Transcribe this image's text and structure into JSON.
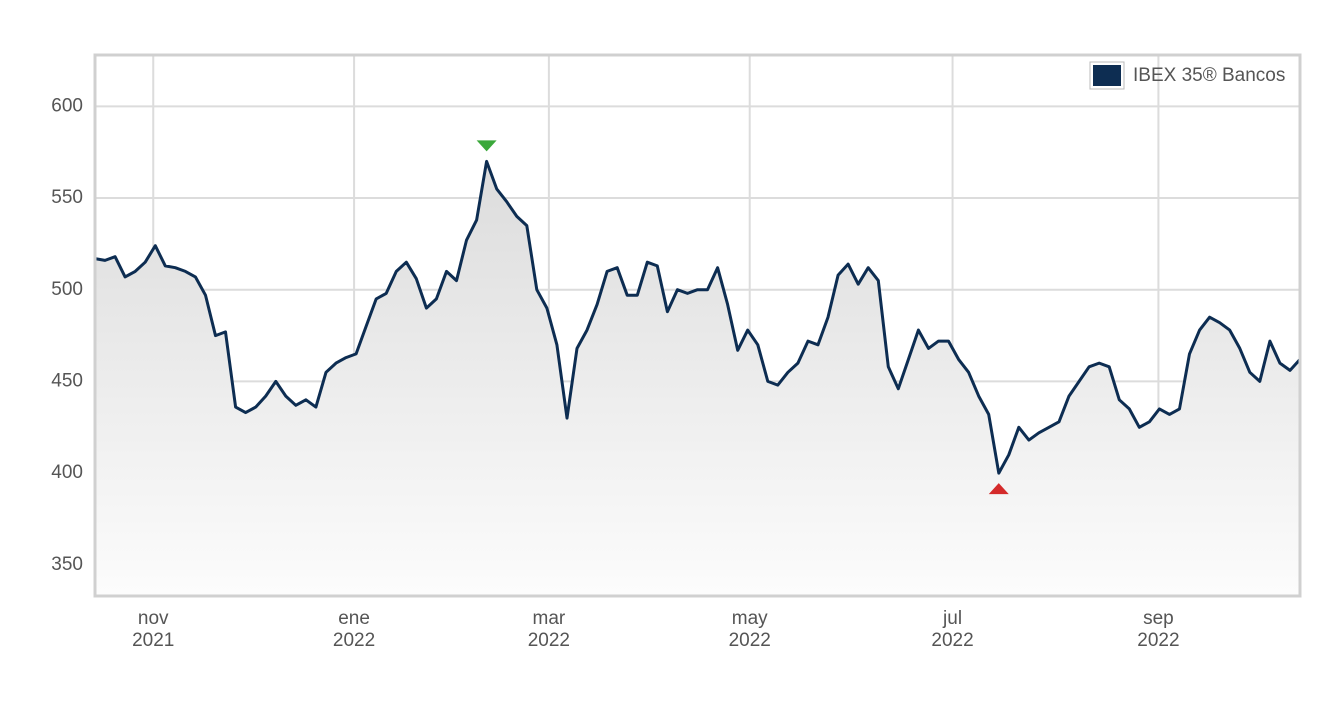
{
  "chart_data": {
    "type": "line",
    "series": [
      {
        "name": "IBEX 35® Bancos",
        "color": "#0d2d52",
        "values": [
          517,
          516,
          518,
          507,
          510,
          515,
          524,
          513,
          512,
          510,
          507,
          497,
          475,
          477,
          436,
          433,
          436,
          442,
          450,
          442,
          437,
          440,
          436,
          455,
          460,
          463,
          465,
          480,
          495,
          498,
          510,
          515,
          506,
          490,
          495,
          510,
          505,
          527,
          538,
          570,
          555,
          548,
          540,
          535,
          500,
          490,
          470,
          430,
          468,
          478,
          492,
          510,
          512,
          497,
          497,
          515,
          513,
          488,
          500,
          498,
          500,
          500,
          512,
          492,
          467,
          478,
          470,
          450,
          448,
          455,
          460,
          472,
          470,
          485,
          508,
          514,
          503,
          512,
          505,
          458,
          446,
          462,
          478,
          468,
          472,
          472,
          462,
          455,
          442,
          432,
          400,
          410,
          425,
          418,
          422,
          425,
          428,
          442,
          450,
          458,
          460,
          458,
          440,
          435,
          425,
          428,
          435,
          432,
          435,
          465,
          478,
          485,
          482,
          478,
          468,
          455,
          450,
          472,
          460,
          456,
          462
        ]
      }
    ],
    "xlim": [
      0,
      120
    ],
    "xticks": [
      {
        "value": 5.8,
        "label": "nov\n2021"
      },
      {
        "value": 25.8,
        "label": "ene\n2022"
      },
      {
        "value": 45.2,
        "label": "mar\n2022"
      },
      {
        "value": 65.2,
        "label": "may\n2022"
      },
      {
        "value": 85.4,
        "label": "jul\n2022"
      },
      {
        "value": 105.9,
        "label": "sep\n2022"
      }
    ],
    "ylim": [
      333,
      628
    ],
    "yticks": [
      350,
      400,
      450,
      500,
      550,
      600
    ],
    "grid": true,
    "legend": "top-right"
  }
}
